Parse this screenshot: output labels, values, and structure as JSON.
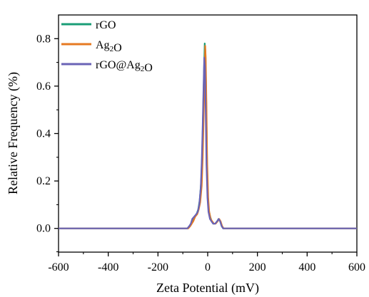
{
  "chart_data": {
    "type": "line",
    "title": "",
    "xlabel": "Zeta Potential (mV)",
    "ylabel": "Relative Frequency (%)",
    "xlim": [
      -600,
      600
    ],
    "ylim": [
      -0.1,
      0.9
    ],
    "xticks": [
      -600,
      -400,
      -200,
      0,
      200,
      400,
      600
    ],
    "yticks": [
      0.0,
      0.2,
      0.4,
      0.6,
      0.8
    ],
    "xtick_labels": [
      "-600",
      "-400",
      "-200",
      "0",
      "200",
      "400",
      "600"
    ],
    "ytick_labels": [
      "0.0",
      "0.2",
      "0.4",
      "0.6",
      "0.8"
    ],
    "grid": false,
    "legend_position": "top-left",
    "series": [
      {
        "name": "rGO",
        "color": "#1a9e77",
        "x": [
          -600,
          -80,
          -72,
          -66,
          -60,
          -52,
          -45,
          -38,
          -32,
          -26,
          -22,
          -18,
          -15,
          -12,
          -9,
          -6,
          -3,
          0,
          4,
          10,
          16,
          22,
          30,
          38,
          44,
          50,
          56,
          62,
          600
        ],
        "y": [
          0,
          0,
          0.01,
          0.02,
          0.04,
          0.05,
          0.06,
          0.08,
          0.12,
          0.2,
          0.32,
          0.5,
          0.65,
          0.78,
          0.74,
          0.55,
          0.3,
          0.15,
          0.08,
          0.05,
          0.03,
          0.02,
          0.02,
          0.03,
          0.04,
          0.03,
          0.01,
          0,
          0
        ]
      },
      {
        "name": "Ag2O",
        "color": "#e67a22",
        "x": [
          -600,
          -78,
          -70,
          -64,
          -58,
          -50,
          -42,
          -36,
          -30,
          -24,
          -20,
          -16,
          -13,
          -10,
          -8,
          -5,
          -2,
          2,
          6,
          12,
          18,
          25,
          32,
          40,
          46,
          52,
          58,
          64,
          600
        ],
        "y": [
          0,
          0,
          0.01,
          0.02,
          0.03,
          0.05,
          0.06,
          0.08,
          0.11,
          0.18,
          0.3,
          0.48,
          0.62,
          0.77,
          0.72,
          0.52,
          0.28,
          0.13,
          0.07,
          0.04,
          0.03,
          0.02,
          0.02,
          0.03,
          0.04,
          0.03,
          0.01,
          0,
          0
        ]
      },
      {
        "name": "rGO@Ag2O",
        "color": "#6a63b6",
        "x": [
          -600,
          -82,
          -74,
          -68,
          -62,
          -54,
          -46,
          -40,
          -34,
          -28,
          -24,
          -20,
          -17,
          -14,
          -11,
          -8,
          -5,
          -1,
          3,
          9,
          15,
          22,
          30,
          38,
          44,
          50,
          56,
          62,
          600
        ],
        "y": [
          0,
          0,
          0.01,
          0.02,
          0.04,
          0.05,
          0.06,
          0.07,
          0.1,
          0.17,
          0.28,
          0.44,
          0.58,
          0.72,
          0.68,
          0.5,
          0.27,
          0.13,
          0.07,
          0.04,
          0.03,
          0.02,
          0.02,
          0.03,
          0.04,
          0.03,
          0.01,
          0,
          0
        ]
      }
    ]
  }
}
